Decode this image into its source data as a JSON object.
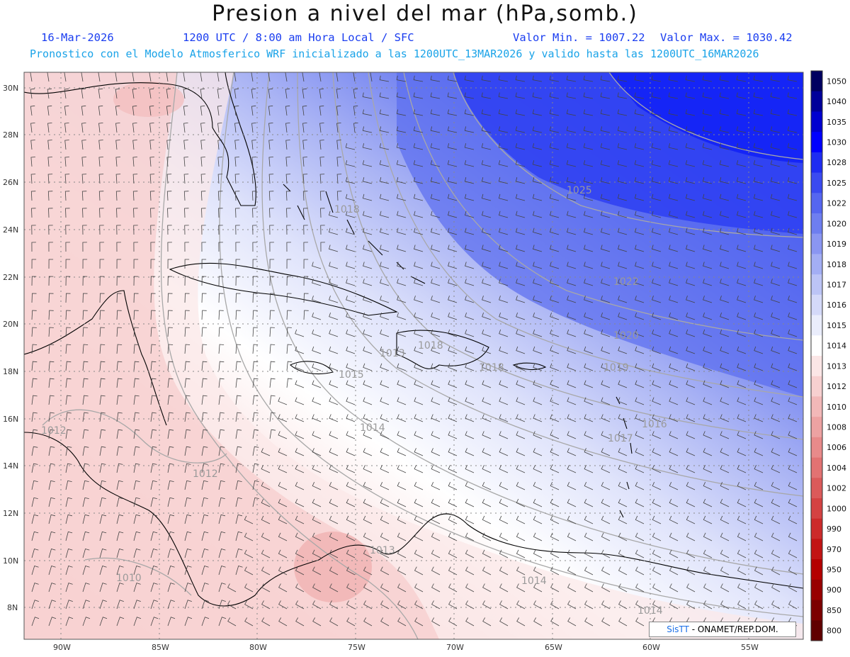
{
  "header": {
    "title": "Presion a nivel del mar (hPa,somb.)",
    "date": "16-Mar-2026",
    "time": "1200 UTC / 8:00 am Hora Local / SFC",
    "min": "Valor Min. = 1007.22",
    "max": "Valor Max. = 1030.42",
    "forecast": "Pronostico con el Modelo Atmosferico WRF inicializado a las 1200UTC_13MAR2026 y valido hasta las  1200UTC_16MAR2026"
  },
  "axes": {
    "lat_labels": [
      "30N",
      "28N",
      "26N",
      "24N",
      "22N",
      "20N",
      "18N",
      "16N",
      "14N",
      "12N",
      "10N",
      "8N"
    ],
    "lon_labels": [
      "90W",
      "85W",
      "80W",
      "75W",
      "70W",
      "65W",
      "60W",
      "55W"
    ]
  },
  "isobar_labels": [
    "1025",
    "1022",
    "1020",
    "1019",
    "1018",
    "1018",
    "1018",
    "1016",
    "1017",
    "1015",
    "1014",
    "1014",
    "1014",
    "1013",
    "1013",
    "1012",
    "1012",
    "1010"
  ],
  "colorbar": {
    "labels": [
      "1050",
      "1040",
      "1035",
      "1030",
      "1028",
      "1025",
      "1022",
      "1020",
      "1019",
      "1018",
      "1017",
      "1016",
      "1015",
      "1014",
      "1013",
      "1012",
      "1010",
      "1008",
      "1006",
      "1004",
      "1002",
      "1000",
      "990",
      "970",
      "950",
      "900",
      "850",
      "800"
    ],
    "colors": [
      "#000060",
      "#00009a",
      "#0000d0",
      "#0000ff",
      "#1e2cf2",
      "#3a4af0",
      "#5566f0",
      "#6e7ef0",
      "#8a96f2",
      "#a3aef4",
      "#bcc4f6",
      "#d4d9f9",
      "#eaedfc",
      "#ffffff",
      "#fbe6e6",
      "#f7d0d0",
      "#f2b8b8",
      "#eda2a2",
      "#e88a8a",
      "#e27272",
      "#db5a5a",
      "#d44242",
      "#cc2a2a",
      "#c21414",
      "#b40000",
      "#980000",
      "#7c0000",
      "#600000"
    ]
  },
  "credit": {
    "brand": "SisTT",
    "org": " - ONAMET/REP.DOM."
  }
}
